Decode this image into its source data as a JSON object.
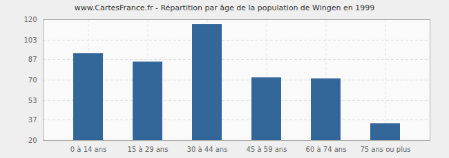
{
  "chart_data": {
    "type": "bar",
    "title": "www.CartesFrance.fr - Répartition par âge de la population de Wingen en 1999",
    "categories": [
      "0 à 14 ans",
      "15 à 29 ans",
      "30 à 44 ans",
      "45 à 59 ans",
      "60 à 74 ans",
      "75 ans ou plus"
    ],
    "values": [
      92,
      85,
      116,
      72,
      71,
      34
    ],
    "color": "#336699",
    "ylim": [
      20,
      120
    ],
    "yticks": [
      20,
      37,
      53,
      70,
      87,
      103,
      120
    ],
    "grid": true
  }
}
